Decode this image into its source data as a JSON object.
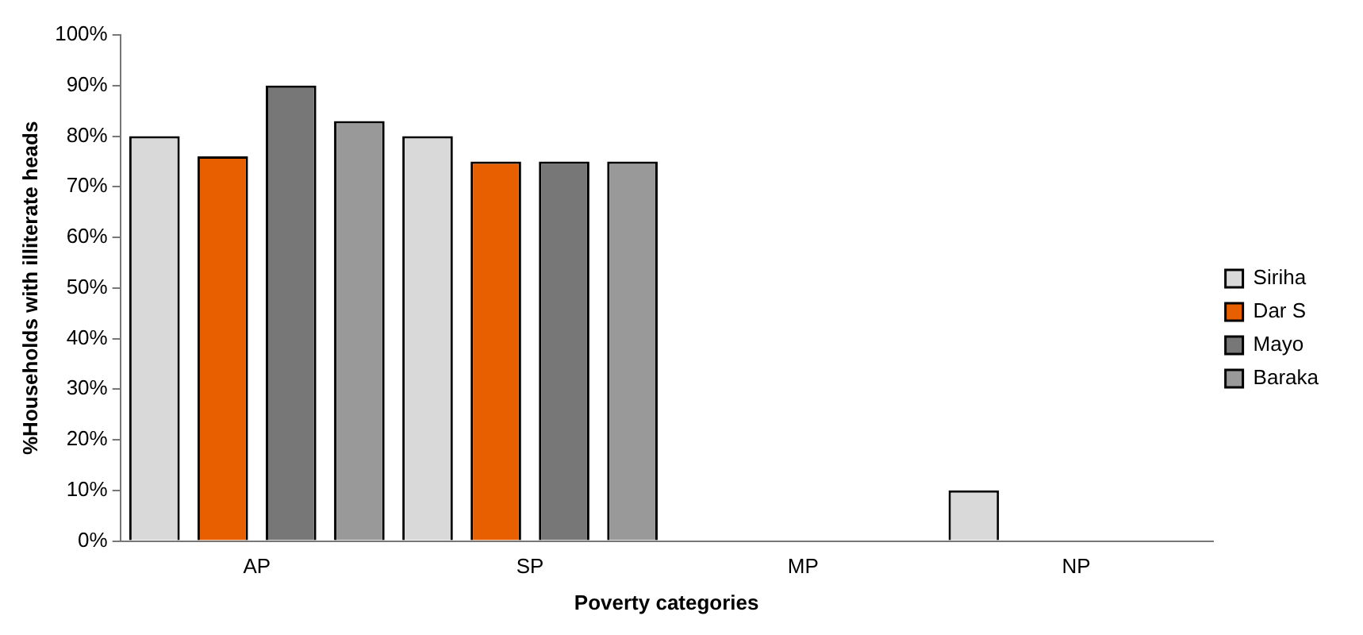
{
  "chart_data": {
    "type": "bar",
    "xlabel": "Poverty categories",
    "ylabel": "%Households with illiterate heads",
    "categories": [
      "AP",
      "SP",
      "MP",
      "NP"
    ],
    "series": [
      {
        "name": "Siriha",
        "color": "#d9d9d9",
        "values": [
          80,
          80,
          0,
          10
        ]
      },
      {
        "name": "Dar S",
        "color": "#e85f00",
        "values": [
          76,
          75,
          0,
          0
        ]
      },
      {
        "name": "Mayo",
        "color": "#777777",
        "values": [
          90,
          75,
          0,
          0
        ]
      },
      {
        "name": "Baraka",
        "color": "#999999",
        "values": [
          83,
          75,
          0,
          0
        ]
      }
    ],
    "ylim": [
      0,
      100
    ],
    "yticks": [
      {
        "value": 0,
        "label": "0%"
      },
      {
        "value": 10,
        "label": "10%"
      },
      {
        "value": 20,
        "label": "20%"
      },
      {
        "value": 30,
        "label": "30%"
      },
      {
        "value": 40,
        "label": "40%"
      },
      {
        "value": 50,
        "label": "50%"
      },
      {
        "value": 60,
        "label": "60%"
      },
      {
        "value": 70,
        "label": "70%"
      },
      {
        "value": 80,
        "label": "80%"
      },
      {
        "value": 90,
        "label": "90%"
      },
      {
        "value": 100,
        "label": "100%"
      }
    ],
    "grid": false,
    "legend": "right"
  }
}
